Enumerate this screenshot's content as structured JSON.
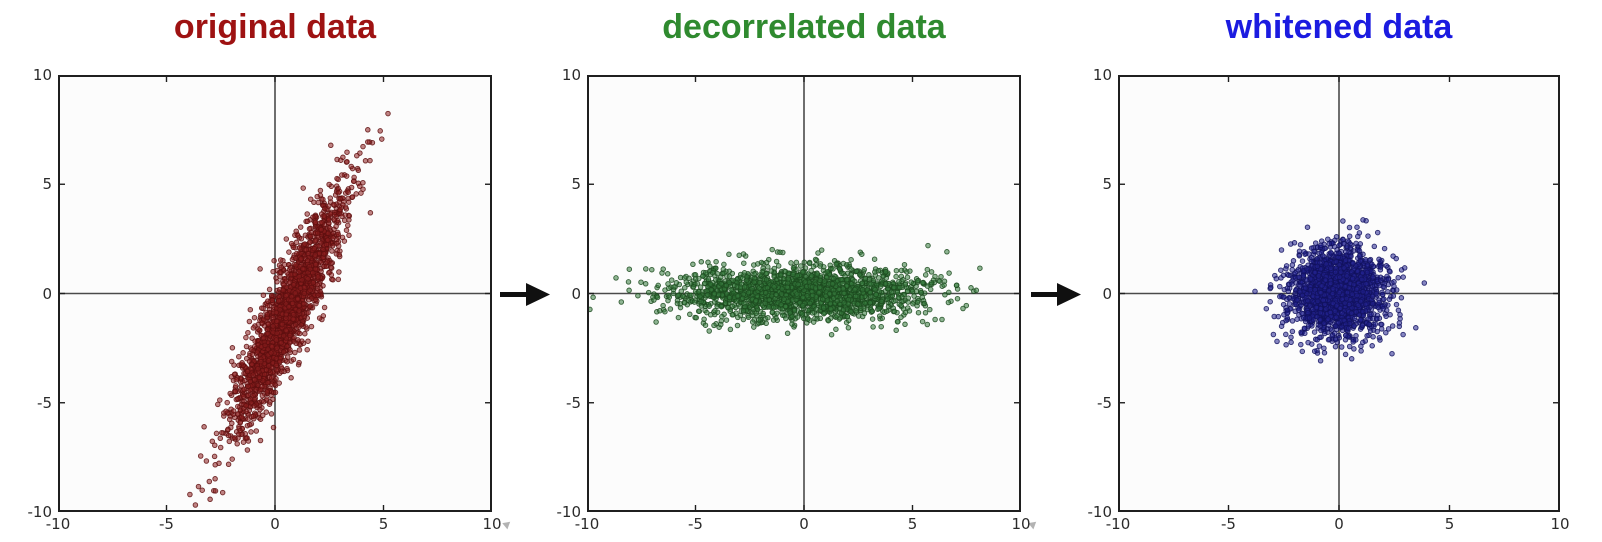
{
  "figure": {
    "kind": "three-panel scatter figure illustrating PCA decorrelation and whitening",
    "background": "#ffffff",
    "style": {
      "axis_color": "#1f1f1f",
      "crosshair_color": "#4a4a4a",
      "tick_label_color": "#2b2b2b",
      "plot_background": "#fcfcfc"
    },
    "arrows": [
      {
        "icon": "arrow-right-icon",
        "color": "#101010"
      },
      {
        "icon": "arrow-right-icon",
        "color": "#101010"
      }
    ]
  },
  "chart_data": [
    {
      "type": "scatter",
      "title": "original data",
      "title_color": "#9e1212",
      "xlim": [
        -10,
        10
      ],
      "ylim": [
        -10,
        10
      ],
      "xticks": [
        -10,
        -5,
        0,
        5,
        10
      ],
      "yticks": [
        -10,
        -5,
        0,
        5,
        10
      ],
      "xtick_labels": [
        "-10",
        "-5",
        "0",
        "5",
        "10"
      ],
      "ytick_labels": [
        "-10",
        "-5",
        "0",
        "5",
        "10"
      ],
      "grid": false,
      "crosshair_at_origin": true,
      "n_points": 2000,
      "distribution": {
        "kind": "gaussian",
        "mean": [
          0.6,
          -0.8
        ],
        "principal_axis_direction": [
          1,
          2.2
        ],
        "std_major": 3.0,
        "std_minor": 0.5
      },
      "x_range_observed": [
        -3.5,
        4.6
      ],
      "y_range_observed": [
        -9.5,
        7.9
      ],
      "point_fill": "#8c1f1f",
      "point_edge": "#5e0f0f",
      "seed": 7
    },
    {
      "type": "scatter",
      "title": "decorrelated data",
      "title_color": "#2f8a2f",
      "xlim": [
        -10,
        10
      ],
      "ylim": [
        -10,
        10
      ],
      "xticks": [
        -10,
        -5,
        0,
        5,
        10
      ],
      "yticks": [
        -10,
        -5,
        0,
        5,
        10
      ],
      "xtick_labels": [
        "-10",
        "-5",
        "0",
        "5",
        "10"
      ],
      "ytick_labels": [
        "-10",
        "-5",
        "0",
        "5",
        "10"
      ],
      "grid": false,
      "crosshair_at_origin": true,
      "n_points": 2000,
      "distribution": {
        "kind": "gaussian",
        "mean": [
          -0.3,
          0.05
        ],
        "principal_axis_direction": [
          1,
          0
        ],
        "std_major": 2.9,
        "std_minor": 0.62
      },
      "x_range_observed": [
        -9.0,
        8.0
      ],
      "y_range_observed": [
        -2.1,
        2.0
      ],
      "point_fill": "#357a3c",
      "point_edge": "#1c4a1f",
      "seed": 11
    },
    {
      "type": "scatter",
      "title": "whitened data",
      "title_color": "#1b1be0",
      "xlim": [
        -10,
        10
      ],
      "ylim": [
        -10,
        10
      ],
      "xticks": [
        -10,
        -5,
        0,
        5,
        10
      ],
      "yticks": [
        -10,
        -5,
        0,
        5,
        10
      ],
      "xtick_labels": [
        "-10",
        "-5",
        "0",
        "5",
        "10"
      ],
      "ytick_labels": [
        "-10",
        "-5",
        "0",
        "5",
        "10"
      ],
      "grid": false,
      "crosshair_at_origin": true,
      "n_points": 2000,
      "distribution": {
        "kind": "gaussian",
        "mean": [
          -0.1,
          0.05
        ],
        "principal_axis_direction": [
          1,
          0
        ],
        "std_major": 1.05,
        "std_minor": 1.0
      },
      "x_range_observed": [
        -3.5,
        3.4
      ],
      "y_range_observed": [
        -3.3,
        3.2
      ],
      "point_fill": "#23238f",
      "point_edge": "#12125e",
      "seed": 23
    }
  ]
}
